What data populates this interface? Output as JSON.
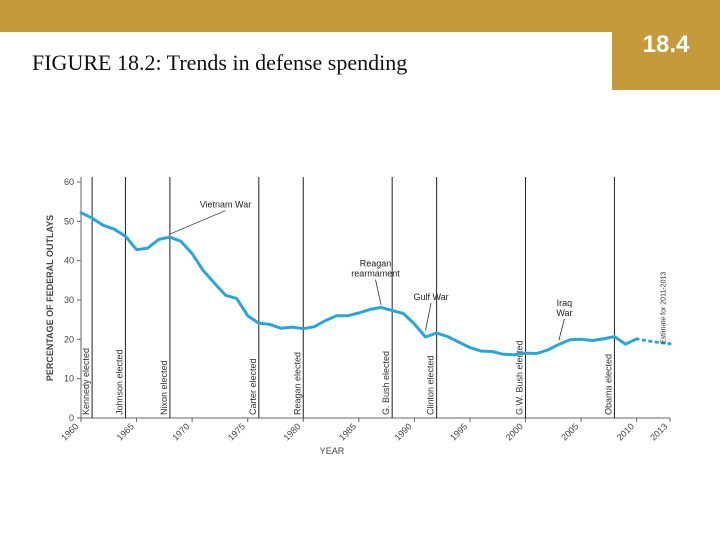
{
  "slide": {
    "title": "FIGURE 18.2: Trends in defense spending",
    "number": "18.4"
  },
  "colors": {
    "accent": "#c49a3a",
    "line": "#2aa6d6",
    "axis": "#666666",
    "event_line": "#222222"
  },
  "chart_data": {
    "type": "line",
    "title": "",
    "xlabel": "YEAR",
    "ylabel": "PERCENTAGE OF FEDERAL OUTLAYS",
    "xlim": [
      1960,
      2013
    ],
    "ylim": [
      0,
      60
    ],
    "x_ticks": [
      1960,
      1965,
      1970,
      1975,
      1980,
      1985,
      1990,
      1995,
      2000,
      2005,
      2010,
      2013
    ],
    "y_ticks": [
      0,
      10,
      20,
      30,
      40,
      50,
      60
    ],
    "grid": false,
    "series": [
      {
        "x": [
          1960,
          1961,
          1962,
          1963,
          1964,
          1965,
          1966,
          1967,
          1968,
          1969,
          1970,
          1971,
          1972,
          1973,
          1974,
          1975,
          1976,
          1977,
          1978,
          1979,
          1980,
          1981,
          1982,
          1983,
          1984,
          1985,
          1986,
          1987,
          1988,
          1989,
          1990,
          1991,
          1992,
          1993,
          1994,
          1995,
          1996,
          1997,
          1998,
          1999,
          2000,
          2001,
          2002,
          2003,
          2004,
          2005,
          2006,
          2007,
          2008,
          2009,
          2010
        ],
        "values": [
          52.2,
          50.8,
          49.0,
          48.0,
          46.2,
          42.8,
          43.2,
          45.4,
          46.0,
          44.9,
          41.8,
          37.5,
          34.3,
          31.2,
          30.4,
          26.0,
          24.1,
          23.8,
          22.8,
          23.1,
          22.7,
          23.2,
          24.8,
          26.0,
          26.0,
          26.7,
          27.6,
          28.1,
          27.3,
          26.6,
          23.9,
          20.6,
          21.6,
          20.7,
          19.3,
          17.9,
          17.0,
          16.9,
          16.2,
          16.1,
          16.5,
          16.4,
          17.3,
          18.7,
          19.9,
          20.0,
          19.7,
          20.1,
          20.7,
          18.8,
          20.1
        ]
      },
      {
        "style": "estimate",
        "x": [
          2010,
          2011,
          2012,
          2013
        ],
        "values": [
          20.1,
          19.6,
          19.2,
          18.9
        ]
      }
    ],
    "event_lines": [
      {
        "year": 1961,
        "label": "Kennedy elected"
      },
      {
        "year": 1964,
        "label": "Johnson elected"
      },
      {
        "year": 1968,
        "label": "Nixon elected"
      },
      {
        "year": 1976,
        "label": "Carter elected"
      },
      {
        "year": 1980,
        "label": "Reagan elected"
      },
      {
        "year": 1988,
        "label": "G. Bush elected"
      },
      {
        "year": 1992,
        "label": "Clinton elected"
      },
      {
        "year": 2000,
        "label": "G.W. Bush elected"
      },
      {
        "year": 2008,
        "label": "Obama elected"
      }
    ],
    "annotations": [
      {
        "label": "Vietnam War",
        "year": 1968,
        "value": 46,
        "text_year": 1973,
        "text_value": 53.5
      },
      {
        "label": "Reagan rearmament",
        "year": 1987,
        "value": 28,
        "text_year": 1986.5,
        "text_value": 38.5
      },
      {
        "label": "Gulf War",
        "year": 1991,
        "value": 21.5,
        "text_year": 1991.5,
        "text_value": 30
      },
      {
        "label": "Iraq War",
        "year": 2003,
        "value": 19,
        "text_year": 2003.5,
        "text_value": 28.5
      }
    ],
    "estimate_label": "Estimate for 2011-2013"
  }
}
